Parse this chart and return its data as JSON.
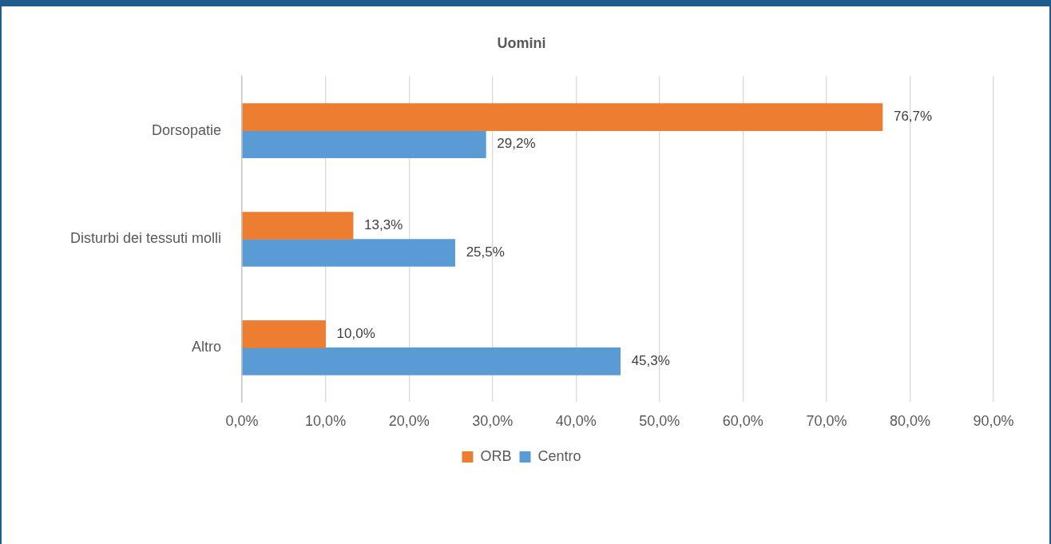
{
  "chart_data": {
    "type": "bar",
    "orientation": "horizontal",
    "title": "Uomini",
    "categories": [
      "Dorsopatie",
      "Disturbi dei tessuti molli",
      "Altro"
    ],
    "series": [
      {
        "name": "ORB",
        "color": "#ed7d31",
        "values": [
          76.7,
          13.3,
          10.0
        ],
        "value_labels": [
          "76,7%",
          "13,3%",
          "10,0%"
        ]
      },
      {
        "name": "Centro",
        "color": "#5b9bd5",
        "values": [
          29.2,
          25.5,
          45.3
        ],
        "value_labels": [
          "29,2%",
          "25,5%",
          "45,3%"
        ]
      }
    ],
    "xlim": [
      0,
      90
    ],
    "xticks": [
      {
        "value": 0,
        "label": "0,0%"
      },
      {
        "value": 10,
        "label": "10,0%"
      },
      {
        "value": 20,
        "label": "20,0%"
      },
      {
        "value": 30,
        "label": "30,0%"
      },
      {
        "value": 40,
        "label": "40,0%"
      },
      {
        "value": 50,
        "label": "50,0%"
      },
      {
        "value": 60,
        "label": "60,0%"
      },
      {
        "value": 70,
        "label": "70,0%"
      },
      {
        "value": 80,
        "label": "80,0%"
      },
      {
        "value": 90,
        "label": "90,0%"
      }
    ],
    "grid": "x",
    "legend": "bottom"
  }
}
